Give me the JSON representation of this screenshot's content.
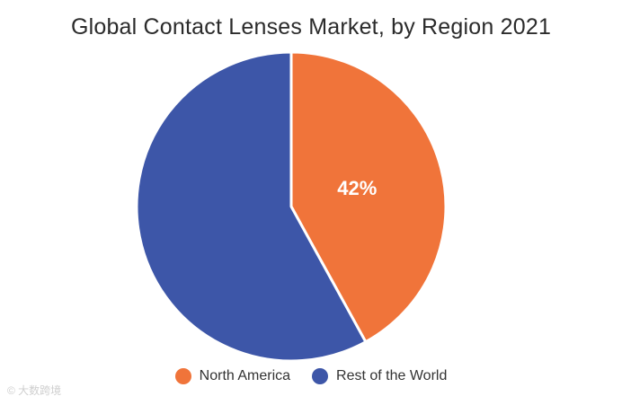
{
  "chart_data": {
    "type": "pie",
    "title": "Global Contact Lenses Market, by Region 2021",
    "slices": [
      {
        "label": "North America",
        "value": 42,
        "color": "#f0743a",
        "data_label": "42%"
      },
      {
        "label": "Rest of the World",
        "value": 58,
        "color": "#3d56a8",
        "data_label": ""
      }
    ],
    "legend_position": "bottom-center"
  },
  "watermark": "© 大数跨境",
  "legend": {
    "items": [
      {
        "label": "North America",
        "color": "#f0743a"
      },
      {
        "label": "Rest of the World",
        "color": "#3d56a8"
      }
    ]
  }
}
